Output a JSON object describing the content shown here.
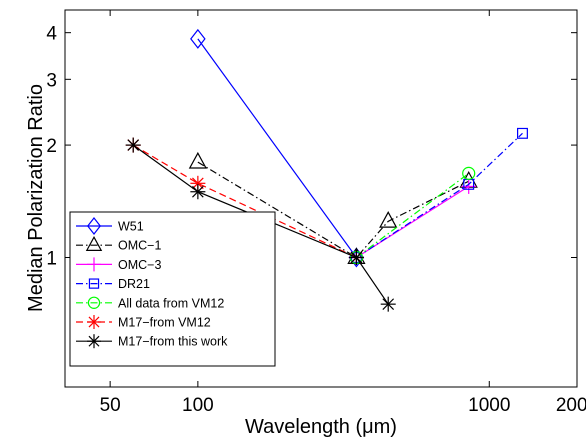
{
  "chart_data": {
    "type": "line",
    "title": "",
    "xlabel": "Wavelength (μm)",
    "ylabel": "Median Polarization Ratio",
    "xscale": "log",
    "yscale": "log",
    "xlim": [
      35,
      2000
    ],
    "ylim": [
      0.45,
      4.6
    ],
    "xticks": [
      50,
      100,
      1000,
      2000
    ],
    "xtick_labels": [
      "50",
      "100",
      "1000",
      "2000"
    ],
    "yticks": [
      1,
      2,
      3,
      4
    ],
    "ytick_labels": [
      "1",
      "2",
      "3",
      "4"
    ],
    "grid": false,
    "legend_position": "lower-left",
    "series": [
      {
        "name": "W51",
        "color": "#0000ff",
        "line_style": "solid",
        "marker": "diamond",
        "x": [
          100,
          350
        ],
        "y": [
          3.85,
          1.0
        ]
      },
      {
        "name": "OMC−1",
        "color": "#000000",
        "line_style": "dashdot",
        "marker": "triangle",
        "x": [
          100,
          350,
          450,
          850
        ],
        "y": [
          1.8,
          1.0,
          1.25,
          1.6
        ]
      },
      {
        "name": "OMC−3",
        "color": "#ff00ff",
        "line_style": "solid",
        "marker": "plus",
        "x": [
          350,
          850
        ],
        "y": [
          1.0,
          1.55
        ]
      },
      {
        "name": "DR21",
        "color": "#0000ff",
        "line_style": "dashdot",
        "marker": "square",
        "x": [
          350,
          850,
          1300
        ],
        "y": [
          1.0,
          1.57,
          2.15
        ]
      },
      {
        "name": "All data from VM12",
        "color": "#00ff00",
        "line_style": "dashdot",
        "marker": "circle",
        "x": [
          350,
          850
        ],
        "y": [
          1.0,
          1.68
        ]
      },
      {
        "name": "M17−from VM12",
        "color": "#ff0000",
        "line_style": "dashed",
        "marker": "asterisk",
        "x": [
          60,
          100,
          350
        ],
        "y": [
          2.0,
          1.58,
          1.0
        ]
      },
      {
        "name": "M17−from this work",
        "color": "#000000",
        "line_style": "solid",
        "marker": "asterisk",
        "x": [
          60,
          100,
          350,
          450
        ],
        "y": [
          2.0,
          1.5,
          1.0,
          0.75
        ]
      }
    ]
  }
}
